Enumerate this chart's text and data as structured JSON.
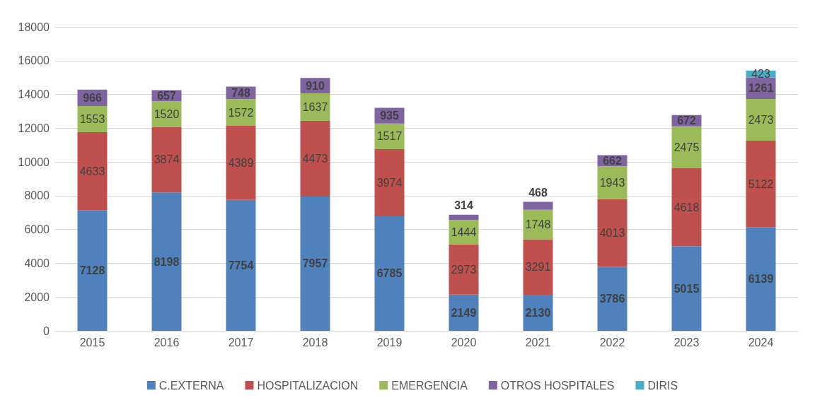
{
  "chart_data": {
    "type": "bar",
    "stacked": true,
    "data_labels": true,
    "grid": "y",
    "legend": "bottom",
    "categories": [
      "2015",
      "2016",
      "2017",
      "2018",
      "2019",
      "2020",
      "2021",
      "2022",
      "2023",
      "2024"
    ],
    "ylim": [
      0,
      18000
    ],
    "yticks": [
      0,
      2000,
      4000,
      6000,
      8000,
      10000,
      12000,
      14000,
      16000,
      18000
    ],
    "series": [
      {
        "name": "C.EXTERNA",
        "color": "#4f81bd",
        "values": [
          7128,
          8198,
          7754,
          7957,
          6785,
          2149,
          2130,
          3786,
          5015,
          6139
        ]
      },
      {
        "name": "HOSPITALIZACION",
        "color": "#c0504d",
        "values": [
          4633,
          3874,
          4389,
          4473,
          3974,
          2973,
          3291,
          4013,
          4618,
          5122
        ]
      },
      {
        "name": "EMERGENCIA",
        "color": "#9bbb59",
        "values": [
          1553,
          1520,
          1572,
          1637,
          1517,
          1444,
          1748,
          1943,
          2475,
          2473
        ]
      },
      {
        "name": "OTROS HOSPITALES",
        "color": "#8064a2",
        "values": [
          966,
          657,
          748,
          910,
          935,
          314,
          468,
          662,
          672,
          1261
        ]
      },
      {
        "name": "DIRIS",
        "color": "#4bacc6",
        "values": [
          null,
          null,
          null,
          null,
          null,
          null,
          null,
          null,
          null,
          423
        ]
      }
    ]
  }
}
